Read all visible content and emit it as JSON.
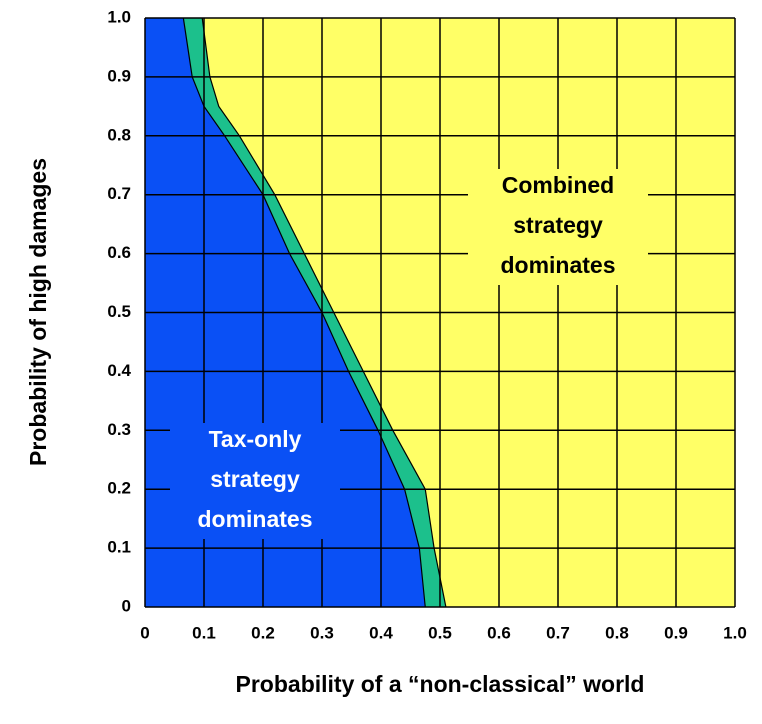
{
  "chart_data": {
    "type": "area",
    "xlabel": "Probability of a “non-classical” world",
    "ylabel": "Probability of high damages",
    "y": [
      1.0,
      0.9,
      0.85,
      0.8,
      0.7,
      0.6,
      0.5,
      0.4,
      0.3,
      0.2,
      0.1,
      0
    ],
    "series": [
      {
        "color": "#1cc08c",
        "values": [
          0.097,
          0.11,
          0.125,
          0.16,
          0.22,
          0.27,
          0.32,
          0.37,
          0.42,
          0.475,
          0.49,
          0.51
        ]
      },
      {
        "color": "#0a50f5",
        "values": [
          0.065,
          0.08,
          0.1,
          0.135,
          0.2,
          0.245,
          0.3,
          0.345,
          0.395,
          0.44,
          0.465,
          0.475
        ]
      }
    ],
    "background": "#ffff66",
    "xlim": [
      0,
      1
    ],
    "ylim": [
      0,
      1
    ],
    "xticks": [
      0,
      0.1,
      0.2,
      0.3,
      0.4,
      0.5,
      0.6,
      0.7,
      0.8,
      0.9,
      {
        "value": 1,
        "label": "1.0"
      }
    ],
    "yticks": [
      0,
      0.1,
      0.2,
      0.3,
      0.4,
      0.5,
      0.6,
      0.7,
      0.8,
      0.9,
      {
        "value": 1,
        "label": "1.0"
      }
    ],
    "grid": true,
    "annotations": [
      {
        "lines": [
          "Combined",
          "strategy",
          "dominates"
        ]
      },
      {
        "lines": [
          "Tax-only",
          "strategy",
          "dominates"
        ]
      }
    ]
  }
}
